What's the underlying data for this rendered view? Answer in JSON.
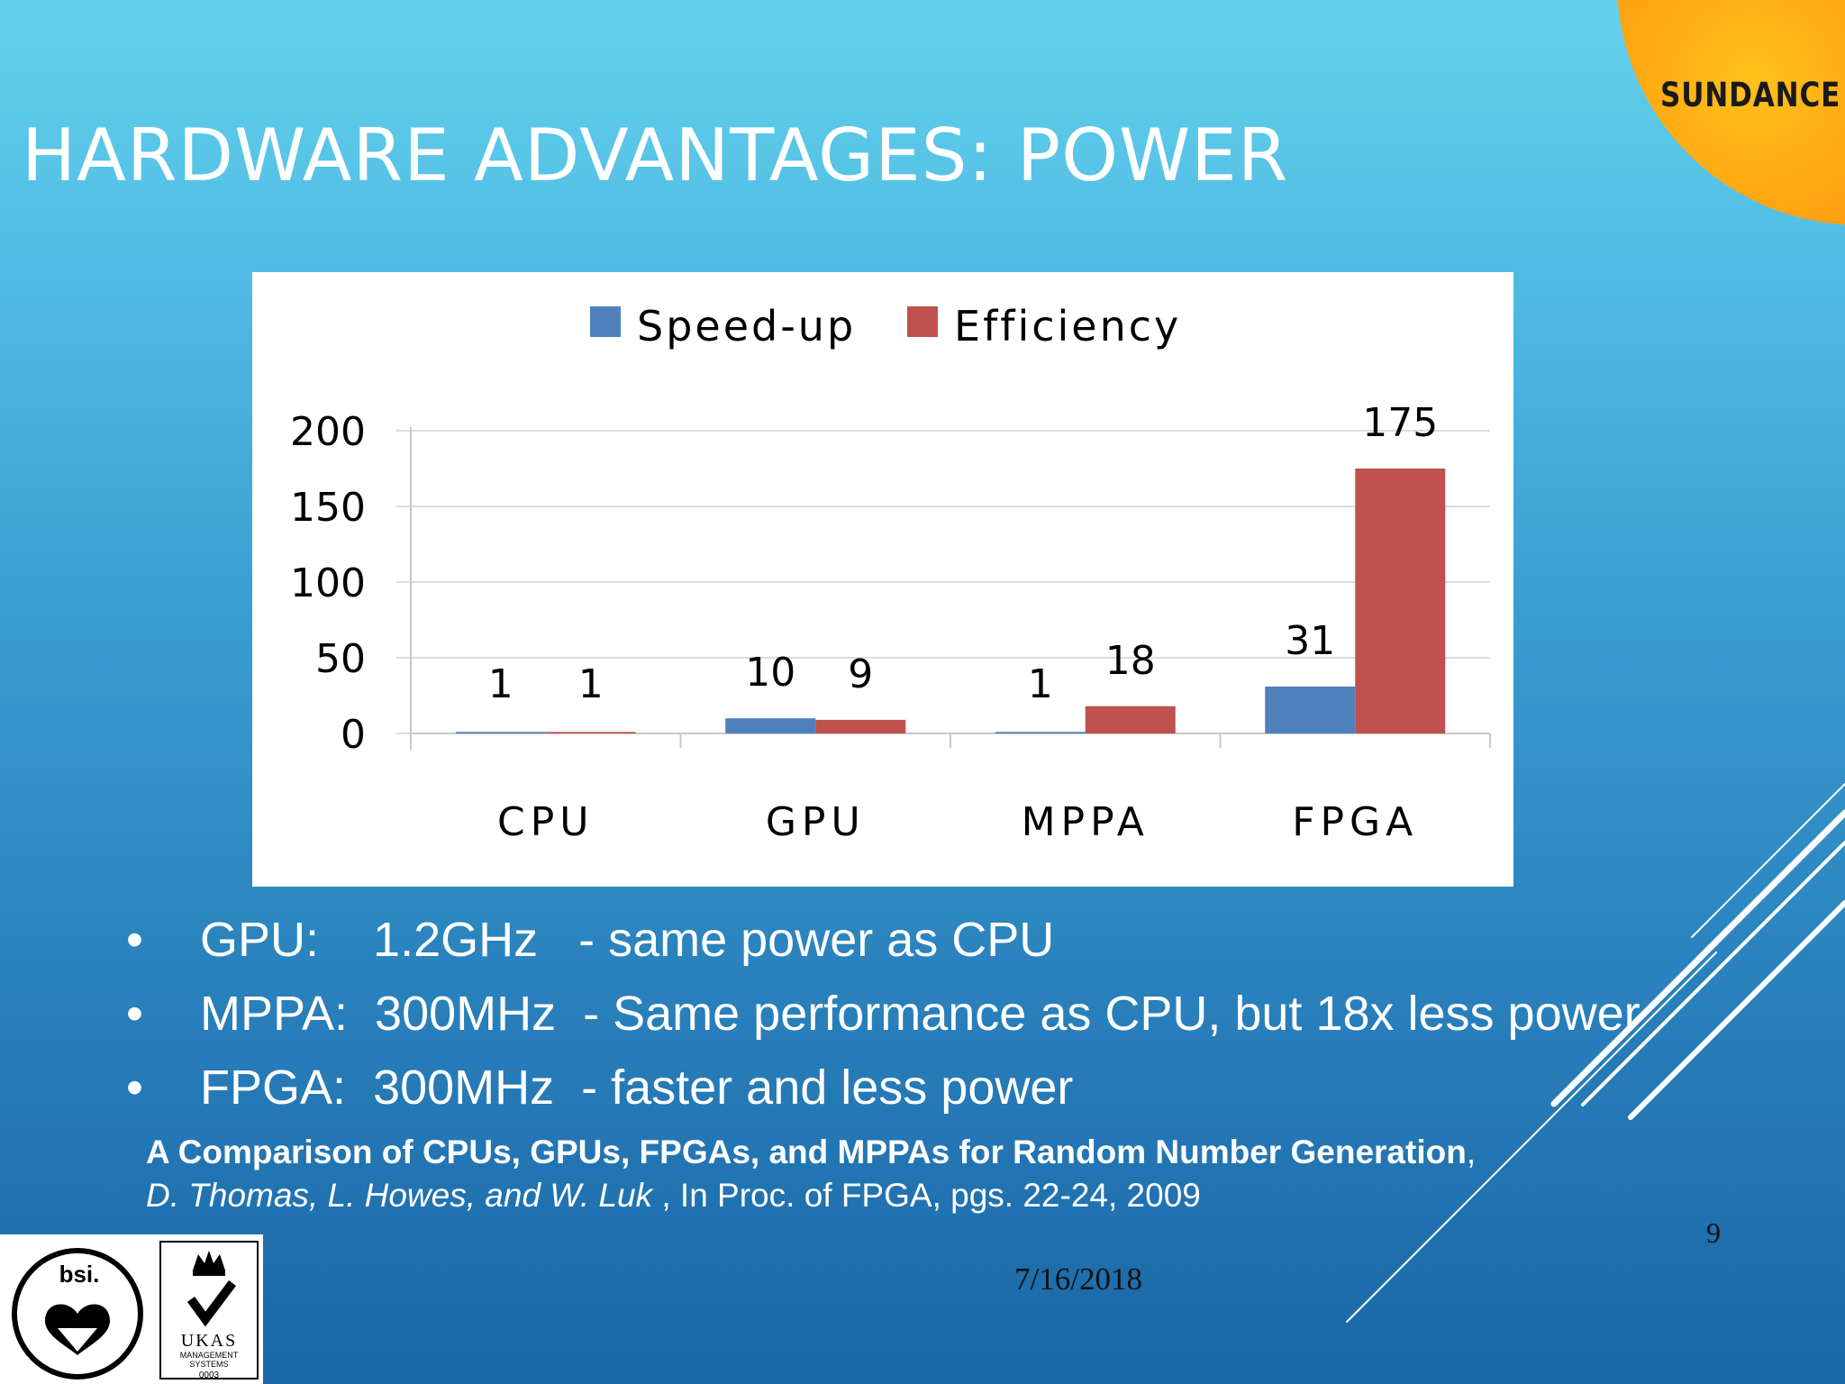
{
  "title": "HARDWARE ADVANTAGES: POWER",
  "logo": {
    "brand": "SUNDANCE"
  },
  "chart_data": {
    "type": "bar",
    "categories": [
      "CPU",
      "GPU",
      "MPPA",
      "FPGA"
    ],
    "series": [
      {
        "name": "Speed-up",
        "values": [
          1,
          10,
          1,
          31
        ],
        "color": "#4f81bd"
      },
      {
        "name": "Efficiency",
        "values": [
          1,
          9,
          18,
          175
        ],
        "color": "#c0504d"
      }
    ],
    "y_ticks": [
      "0",
      "50",
      "100",
      "150",
      "200"
    ],
    "ylim": [
      0,
      200
    ],
    "grid": true,
    "legend_position": "top"
  },
  "bullets": [
    {
      "text": "GPU:    1.2GHz   - same power as CPU"
    },
    {
      "text": "MPPA:  300MHz  - Same performance as CPU, but 18x less power"
    },
    {
      "text": "FPGA:  300MHz  - faster and less power"
    }
  ],
  "bullet_symbol": "•",
  "citation": {
    "title": "A Comparison of CPUs, GPUs, FPGAs, and MPPAs for Random Number Generation",
    "comma": ",",
    "authors": "D. Thomas, L. Howes, and W. Luk",
    "venue": " , In Proc. of FPGA, pgs. 22-24, 2009"
  },
  "slide_number": "9",
  "date": "7/16/2018",
  "certification": {
    "bsi": "bsi.",
    "ukas": "UKAS",
    "ukas_sub1": "MANAGEMENT",
    "ukas_sub2": "SYSTEMS",
    "ukas_code": "0003"
  }
}
